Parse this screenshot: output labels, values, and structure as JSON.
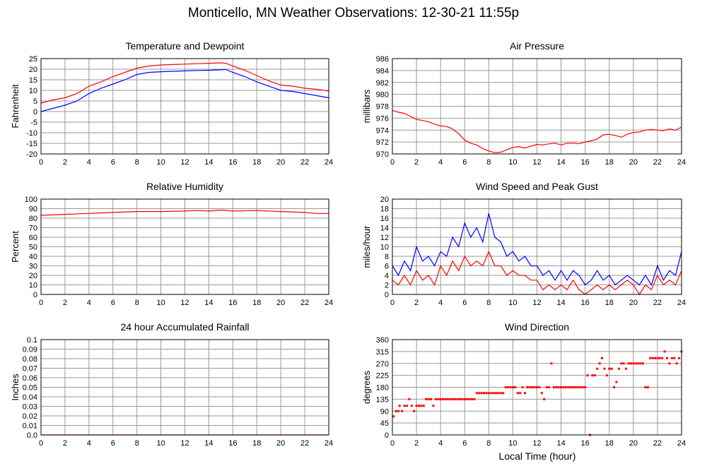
{
  "title": "Monticello, MN Weather Observations: 12-30-21 11:55p",
  "x_axis_label": "Local Time (hour)",
  "colors": {
    "red": "#ff0000",
    "blue": "#0000ff",
    "grid": "#999999",
    "frame": "#000000"
  },
  "chart_data": [
    {
      "id": "temp",
      "type": "line",
      "title": "Temperature and Dewpoint",
      "ylabel": "Fahrenheit",
      "xlim": [
        0,
        24
      ],
      "ylim": [
        -20,
        25
      ],
      "xticks": [
        "0",
        "2",
        "4",
        "6",
        "8",
        "10",
        "12",
        "14",
        "16",
        "18",
        "20",
        "22",
        "24"
      ],
      "yticks": [
        "25",
        "20",
        "15",
        "10",
        "5",
        "0",
        "-5",
        "-10",
        "-15",
        "-20"
      ],
      "grid": true,
      "series": [
        {
          "color": "#ff0000",
          "x": [
            0,
            1,
            2,
            3,
            4,
            5,
            6,
            7,
            8,
            9,
            10,
            11,
            12,
            13,
            14,
            15,
            15.4,
            16,
            17,
            18,
            19,
            20,
            21,
            22,
            23,
            24
          ],
          "y": [
            4,
            5.5,
            6.5,
            8.5,
            12,
            14,
            16.5,
            18.5,
            20.5,
            21.5,
            22,
            22.2,
            22.4,
            22.6,
            22.8,
            23,
            22.8,
            21.5,
            19.5,
            17,
            14.5,
            12.5,
            12,
            11,
            10.5,
            9.7
          ]
        },
        {
          "color": "#0000ff",
          "x": [
            0,
            1,
            2,
            3,
            4,
            5,
            6,
            7,
            8,
            9,
            10,
            11,
            12,
            13,
            14,
            15,
            15.4,
            16,
            17,
            18,
            19,
            20,
            21,
            22,
            23,
            24
          ],
          "y": [
            0,
            1.5,
            3,
            5,
            8.5,
            11,
            13,
            15,
            17.5,
            18.5,
            18.8,
            19,
            19.2,
            19.4,
            19.5,
            19.7,
            19.9,
            18.5,
            16.5,
            14,
            12,
            10,
            9.5,
            8.5,
            7.5,
            6.5
          ]
        }
      ]
    },
    {
      "id": "pres",
      "type": "line",
      "title": "Air Pressure",
      "ylabel": "millibars",
      "xlim": [
        0,
        24
      ],
      "ylim": [
        970,
        986
      ],
      "xticks": [
        "0",
        "2",
        "4",
        "6",
        "8",
        "10",
        "12",
        "14",
        "16",
        "18",
        "20",
        "22",
        "24"
      ],
      "yticks": [
        "986",
        "984",
        "982",
        "980",
        "978",
        "976",
        "974",
        "972",
        "970"
      ],
      "grid": true,
      "series": [
        {
          "color": "#ff0000",
          "x": [
            0,
            0.5,
            1,
            1.5,
            2,
            2.5,
            3,
            3.5,
            4,
            4.5,
            5,
            5.5,
            6,
            6.5,
            7,
            7.5,
            8,
            8.5,
            9,
            9.5,
            10,
            10.5,
            11,
            11.5,
            12,
            12.5,
            13,
            13.5,
            14,
            14.5,
            15,
            15.5,
            16,
            16.5,
            17,
            17.5,
            18,
            18.5,
            19,
            19.5,
            20,
            20.5,
            21,
            21.5,
            22,
            22.5,
            23,
            23.5,
            24
          ],
          "y": [
            977.3,
            977,
            976.8,
            976.3,
            975.8,
            975.6,
            975.4,
            975,
            974.7,
            974.6,
            974.2,
            973.4,
            972.3,
            971.8,
            971.5,
            970.9,
            970.5,
            970.2,
            970.3,
            970.7,
            971.1,
            971.2,
            971,
            971.3,
            971.6,
            971.5,
            971.7,
            971.8,
            971.5,
            971.8,
            971.8,
            971.7,
            972,
            972.2,
            972.5,
            973.2,
            973.3,
            973.1,
            972.8,
            973.3,
            973.6,
            973.7,
            974,
            974.1,
            974,
            973.9,
            974.2,
            974,
            974.5
          ]
        }
      ]
    },
    {
      "id": "rh",
      "type": "line",
      "title": "Relative Humidity",
      "ylabel": "Percent",
      "xlim": [
        0,
        24
      ],
      "ylim": [
        0,
        100
      ],
      "xticks": [
        "0",
        "2",
        "4",
        "6",
        "8",
        "10",
        "12",
        "14",
        "16",
        "18",
        "20",
        "22",
        "24"
      ],
      "yticks": [
        "100",
        "90",
        "80",
        "70",
        "60",
        "50",
        "40",
        "30",
        "20",
        "10",
        "0"
      ],
      "grid": true,
      "series": [
        {
          "color": "#ff0000",
          "x": [
            0,
            2,
            4,
            6,
            8,
            10,
            12,
            13,
            14,
            15,
            16,
            18,
            20,
            22,
            23,
            24
          ],
          "y": [
            83,
            84,
            85,
            86,
            87,
            87,
            87.5,
            88,
            87.5,
            88.5,
            87.5,
            88,
            87,
            86,
            85,
            85
          ]
        }
      ]
    },
    {
      "id": "wind",
      "type": "line",
      "title": "Wind Speed and Peak Gust",
      "ylabel": "miles/hour",
      "xlim": [
        0,
        24
      ],
      "ylim": [
        0,
        20
      ],
      "xticks": [
        "0",
        "2",
        "4",
        "6",
        "8",
        "10",
        "12",
        "14",
        "16",
        "18",
        "20",
        "22",
        "24"
      ],
      "yticks": [
        "20",
        "18",
        "16",
        "14",
        "12",
        "10",
        "8",
        "6",
        "4",
        "2",
        "0"
      ],
      "grid": true,
      "series": [
        {
          "color": "#0000ff",
          "x": [
            0,
            0.5,
            1,
            1.5,
            2,
            2.5,
            3,
            3.5,
            4,
            4.5,
            5,
            5.5,
            6,
            6.5,
            7,
            7.5,
            8,
            8.5,
            9,
            9.5,
            10,
            10.5,
            11,
            11.5,
            12,
            12.5,
            13,
            13.5,
            14,
            14.5,
            15,
            15.5,
            16,
            16.5,
            17,
            17.5,
            18,
            18.5,
            19,
            19.5,
            20,
            20.5,
            21,
            21.5,
            22,
            22.5,
            23,
            23.5,
            24
          ],
          "y": [
            6,
            4,
            7,
            5,
            10,
            7,
            8,
            6,
            9,
            8,
            12,
            10,
            15,
            12,
            14,
            11,
            17,
            12,
            11,
            8,
            9,
            7,
            8,
            6,
            6,
            4,
            5,
            3,
            5,
            3,
            5,
            4,
            2,
            3,
            5,
            3,
            4,
            2,
            3,
            4,
            3,
            2,
            4,
            2,
            6,
            3,
            5,
            4,
            9
          ]
        },
        {
          "color": "#ff0000",
          "x": [
            0,
            0.5,
            1,
            1.5,
            2,
            2.5,
            3,
            3.5,
            4,
            4.5,
            5,
            5.5,
            6,
            6.5,
            7,
            7.5,
            8,
            8.5,
            9,
            9.5,
            10,
            10.5,
            11,
            11.5,
            12,
            12.5,
            13,
            13.5,
            14,
            14.5,
            15,
            15.5,
            16,
            16.5,
            17,
            17.5,
            18,
            18.5,
            19,
            19.5,
            20,
            20.5,
            21,
            21.5,
            22,
            22.5,
            23,
            23.5,
            24
          ],
          "y": [
            3,
            2,
            4,
            2,
            5,
            3,
            4,
            2,
            6,
            4,
            7,
            5,
            8,
            6,
            7,
            6,
            9,
            6,
            6,
            4,
            5,
            4,
            4,
            3,
            3,
            1,
            2,
            1,
            2,
            1,
            3,
            1,
            0,
            1,
            2,
            1,
            2,
            1,
            2,
            3,
            2,
            0,
            2,
            1,
            4,
            2,
            3,
            2,
            5
          ]
        }
      ]
    },
    {
      "id": "rain",
      "type": "line",
      "title": "24 hour Accumulated Rainfall",
      "ylabel": "Inches",
      "xlim": [
        0,
        24
      ],
      "ylim": [
        0,
        0.1
      ],
      "xticks": [
        "0",
        "2",
        "4",
        "6",
        "8",
        "10",
        "12",
        "14",
        "16",
        "18",
        "20",
        "22",
        "24"
      ],
      "yticks": [
        "0.1",
        "0.09",
        "0.08",
        "0.07",
        "0.06",
        "0.05",
        "0.04",
        "0.03",
        "0.02",
        "0.01",
        "0.0"
      ],
      "grid": true,
      "series": [
        {
          "color": "#ff0000",
          "x": [
            0,
            24
          ],
          "y": [
            0,
            0
          ]
        }
      ]
    },
    {
      "id": "wdir",
      "type": "scatter",
      "title": "Wind Direction",
      "ylabel": "degrees",
      "xlim": [
        0,
        24
      ],
      "ylim": [
        0,
        360
      ],
      "xticks": [
        "0",
        "2",
        "4",
        "6",
        "8",
        "10",
        "12",
        "14",
        "16",
        "18",
        "20",
        "22",
        "24"
      ],
      "yticks": [
        "360",
        "315",
        "270",
        "225",
        "180",
        "135",
        "90",
        "45",
        "0"
      ],
      "grid": true,
      "series": [
        {
          "color": "#ff0000",
          "x": [
            0.1,
            0.3,
            0.5,
            0.6,
            0.8,
            1.0,
            1.2,
            1.4,
            1.6,
            1.8,
            2.0,
            2.2,
            2.4,
            2.6,
            2.8,
            3.0,
            3.2,
            3.4,
            3.6,
            3.8,
            4.0,
            4.2,
            4.4,
            4.6,
            4.8,
            5.0,
            5.2,
            5.4,
            5.6,
            5.8,
            6.0,
            6.2,
            6.4,
            6.6,
            6.8,
            7.0,
            7.2,
            7.4,
            7.6,
            7.8,
            8.0,
            8.2,
            8.4,
            8.6,
            8.8,
            9.0,
            9.2,
            9.4,
            9.6,
            9.8,
            10.0,
            10.2,
            10.4,
            10.6,
            10.8,
            11.0,
            11.2,
            11.4,
            11.6,
            11.8,
            12.0,
            12.2,
            12.4,
            12.6,
            12.8,
            13.0,
            13.2,
            13.4,
            13.6,
            13.8,
            14.0,
            14.2,
            14.4,
            14.6,
            14.8,
            15.0,
            15.2,
            15.4,
            15.6,
            15.8,
            16.0,
            16.2,
            16.4,
            16.6,
            16.8,
            17.0,
            17.2,
            17.4,
            17.6,
            17.8,
            18.0,
            18.2,
            18.4,
            18.6,
            18.8,
            19.0,
            19.2,
            19.4,
            19.6,
            19.8,
            20.0,
            20.2,
            20.4,
            20.6,
            20.8,
            21.0,
            21.2,
            21.4,
            21.6,
            21.8,
            22.0,
            22.2,
            22.4,
            22.6,
            22.8,
            23.0,
            23.2,
            23.4,
            23.6,
            23.8,
            24.0
          ],
          "y": [
            70,
            90,
            90,
            110,
            90,
            110,
            110,
            135,
            110,
            90,
            110,
            110,
            110,
            110,
            135,
            135,
            135,
            110,
            135,
            135,
            135,
            135,
            135,
            135,
            135,
            135,
            135,
            135,
            135,
            135,
            135,
            135,
            135,
            135,
            135,
            158,
            158,
            158,
            158,
            158,
            158,
            158,
            158,
            158,
            158,
            158,
            158,
            180,
            180,
            180,
            180,
            180,
            158,
            158,
            180,
            158,
            180,
            180,
            180,
            180,
            180,
            180,
            158,
            135,
            180,
            180,
            270,
            180,
            180,
            180,
            180,
            180,
            180,
            180,
            180,
            180,
            180,
            180,
            180,
            180,
            180,
            225,
            0,
            225,
            225,
            250,
            270,
            290,
            250,
            225,
            250,
            250,
            180,
            200,
            250,
            270,
            270,
            250,
            270,
            270,
            270,
            270,
            270,
            270,
            270,
            180,
            180,
            290,
            290,
            290,
            290,
            290,
            290,
            315,
            290,
            270,
            290,
            290,
            270,
            290,
            315
          ]
        }
      ]
    }
  ]
}
